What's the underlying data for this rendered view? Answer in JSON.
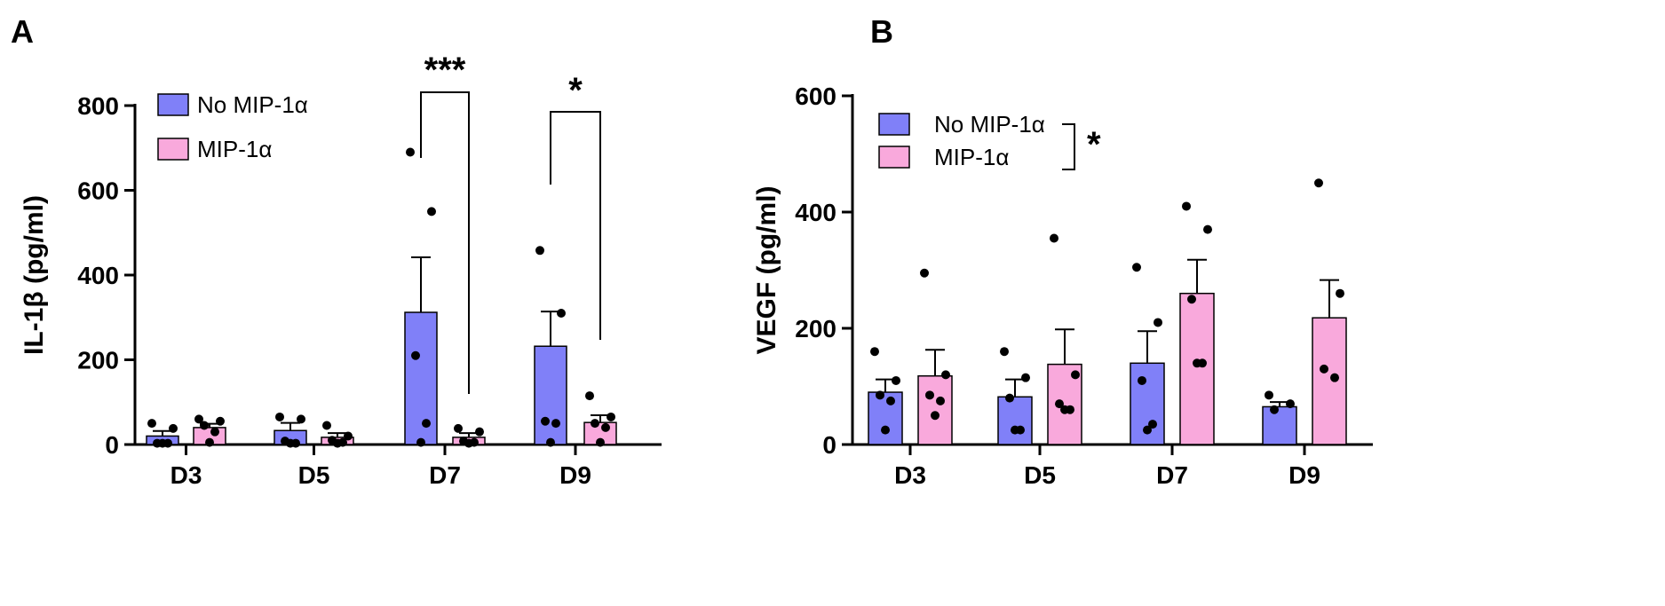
{
  "colors": {
    "no_mip": "#8080f8",
    "mip": "#f9a9dc",
    "axis": "#000000"
  },
  "chart_data": [
    {
      "panel": "A",
      "type": "bar",
      "ylabel": "IL-1β (pg/ml)",
      "ylim": [
        0,
        800
      ],
      "yticks": [
        0,
        200,
        400,
        600,
        800
      ],
      "categories": [
        "D3",
        "D5",
        "D7",
        "D9"
      ],
      "series": [
        {
          "name": "No MIP-1α",
          "color": "#8080f8",
          "values": [
            20,
            33,
            312,
            232
          ],
          "sem": [
            12,
            18,
            130,
            82
          ],
          "points": [
            [
              50,
              38,
              3,
              3,
              3
            ],
            [
              65,
              60,
              8,
              3,
              3
            ],
            [
              690,
              550,
              210,
              50,
              5
            ],
            [
              458,
              310,
              55,
              50,
              5
            ]
          ]
        },
        {
          "name": "MIP-1α",
          "color": "#f9a9dc",
          "values": [
            40,
            17,
            17,
            52
          ],
          "sem": [
            9,
            10,
            10,
            17
          ],
          "points": [
            [
              60,
              55,
              45,
              30,
              5
            ],
            [
              45,
              20,
              10,
              5,
              3
            ],
            [
              38,
              30,
              8,
              5,
              3
            ],
            [
              115,
              65,
              50,
              40,
              5
            ]
          ]
        }
      ],
      "annotations": [
        {
          "category": "D7",
          "label": "***"
        },
        {
          "category": "D9",
          "label": "*"
        }
      ],
      "legend": "top-left"
    },
    {
      "panel": "B",
      "type": "bar",
      "ylabel": "VEGF (pg/ml)",
      "ylim": [
        0,
        600
      ],
      "yticks": [
        0,
        200,
        400,
        600
      ],
      "categories": [
        "D3",
        "D5",
        "D7",
        "D9"
      ],
      "series": [
        {
          "name": "No MIP-1α",
          "color": "#8080f8",
          "values": [
            90,
            82,
            140,
            65
          ],
          "sem": [
            22,
            30,
            55,
            8
          ],
          "points": [
            [
              160,
              110,
              85,
              75,
              25
            ],
            [
              160,
              115,
              80,
              25,
              25
            ],
            [
              305,
              210,
              110,
              35,
              25
            ],
            [
              85,
              70,
              60
            ]
          ]
        },
        {
          "name": "MIP-1α",
          "color": "#f9a9dc",
          "values": [
            118,
            138,
            260,
            218
          ],
          "sem": [
            45,
            60,
            58,
            65
          ],
          "points": [
            [
              295,
              120,
              85,
              75,
              50
            ],
            [
              355,
              120,
              70,
              60,
              60
            ],
            [
              410,
              370,
              250,
              140,
              140
            ],
            [
              450,
              260,
              130,
              115
            ]
          ]
        }
      ],
      "annotations": [
        {
          "target": "legend",
          "label": "*"
        }
      ],
      "legend": "top-left"
    }
  ]
}
